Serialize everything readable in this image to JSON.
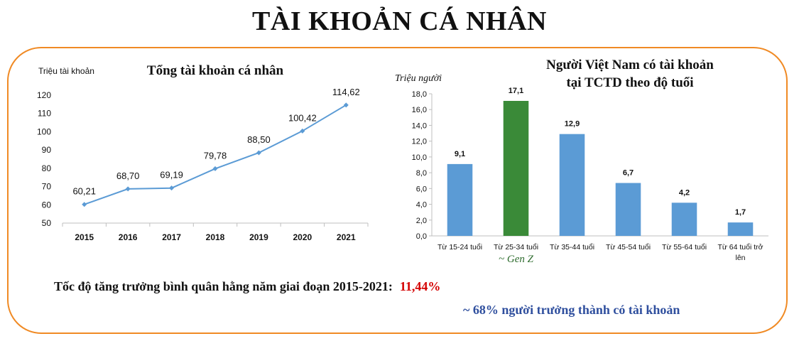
{
  "page": {
    "title": "TÀI KHOẢN CÁ NHÂN",
    "growth_label": "Tốc độ tăng trưởng bình quân hằng năm giai đoạn 2015-2021:",
    "growth_value": "11,44%",
    "adult_note": "~ 68% người trưởng thành có tài khoản",
    "colors": {
      "frame": "#f08a24",
      "growth_value": "#d40000",
      "note": "#2f4f9e"
    }
  },
  "chart_data": [
    {
      "type": "line",
      "title": "Tổng tài khoản cá nhân",
      "ylabel": "Triệu tài khoản",
      "xlabel": "",
      "categories": [
        "2015",
        "2016",
        "2017",
        "2018",
        "2019",
        "2020",
        "2021"
      ],
      "values": [
        60.21,
        68.7,
        69.19,
        79.78,
        88.5,
        100.42,
        114.62
      ],
      "data_labels": [
        "60,21",
        "68,70",
        "69,19",
        "79,78",
        "88,50",
        "100,42",
        "114,62"
      ],
      "ylim": [
        50,
        120
      ],
      "yticks": [
        50,
        60,
        70,
        80,
        90,
        100,
        110,
        120
      ],
      "ytick_labels": [
        "50",
        "60",
        "70",
        "80",
        "90",
        "100",
        "110",
        "120"
      ],
      "grid": false,
      "line_color": "#5b9bd5"
    },
    {
      "type": "bar",
      "title_lines": [
        "Người Việt Nam có tài khoản",
        "tại TCTD theo độ tuổi"
      ],
      "ylabel": "Triệu người",
      "xlabel": "",
      "categories": [
        "Từ 15-24 tuổi",
        "Từ 25-34 tuổi",
        "Từ 35-44 tuổi",
        "Từ 45-54 tuổi",
        "Từ 55-64 tuổi",
        "Từ 64 tuổi trở lên"
      ],
      "category_lines": [
        [
          "Từ 15-24 tuổi"
        ],
        [
          "Từ 25-34 tuổi"
        ],
        [
          "Từ 35-44 tuổi"
        ],
        [
          "Từ 45-54 tuổi"
        ],
        [
          "Từ 55-64 tuổi"
        ],
        [
          "Từ 64 tuổi trở",
          "lên"
        ]
      ],
      "values": [
        9.1,
        17.1,
        12.9,
        6.7,
        4.2,
        1.7
      ],
      "data_labels": [
        "9,1",
        "17,1",
        "12,9",
        "6,7",
        "4,2",
        "1,7"
      ],
      "ylim": [
        0,
        18
      ],
      "yticks": [
        0,
        2,
        4,
        6,
        8,
        10,
        12,
        14,
        16,
        18
      ],
      "ytick_labels": [
        "0,0",
        "2,0",
        "4,0",
        "6,0",
        "8,0",
        "10,0",
        "12,0",
        "14,0",
        "16,0",
        "18,0"
      ],
      "annotation": "~ Gen Z",
      "grid": false,
      "bar_color": "#5b9bd5",
      "highlight_index": 1,
      "highlight_color": "#3a8a38"
    }
  ]
}
